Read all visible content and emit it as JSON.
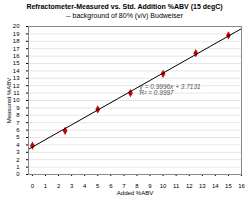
{
  "chart_data": {
    "type": "scatter",
    "title": "Refractometer-Measured vs. Std. Addition %ABV (15 degC)",
    "subtitle": "-- background of 80% (v/v) Budweiser",
    "xlabel": "Added %ABV",
    "ylabel": "Measured %ABV",
    "series": [
      {
        "type": "scatter",
        "color": "#cc0000",
        "marker": "diamond",
        "x": [
          0,
          2.5,
          5,
          7.5,
          10,
          12.5,
          15
        ],
        "values": [
          3.9,
          5.9,
          8.8,
          11.0,
          13.6,
          16.4,
          18.8
        ]
      },
      {
        "type": "line",
        "color": "#000000",
        "line_style": "solid",
        "x": [
          -0.3,
          16
        ],
        "values": [
          3.41322,
          19.7067
        ]
      }
    ],
    "annotations": [
      {
        "text": "y = 0.9996x + 3.7131\nR² = 0.9997",
        "x": 8.2,
        "y": 12.2
      }
    ],
    "xlim": [
      -0.3,
      16
    ],
    "ylim": [
      0,
      20
    ],
    "xticks": [
      0,
      1,
      2,
      3,
      4,
      5,
      6,
      7,
      8,
      9,
      10,
      11,
      12,
      13,
      14,
      15,
      16
    ],
    "yticks": [
      0,
      1,
      2,
      3,
      4,
      5,
      6,
      7,
      8,
      9,
      10,
      11,
      12,
      13,
      14,
      15,
      16,
      17,
      18,
      19,
      20
    ],
    "grid": "y"
  }
}
